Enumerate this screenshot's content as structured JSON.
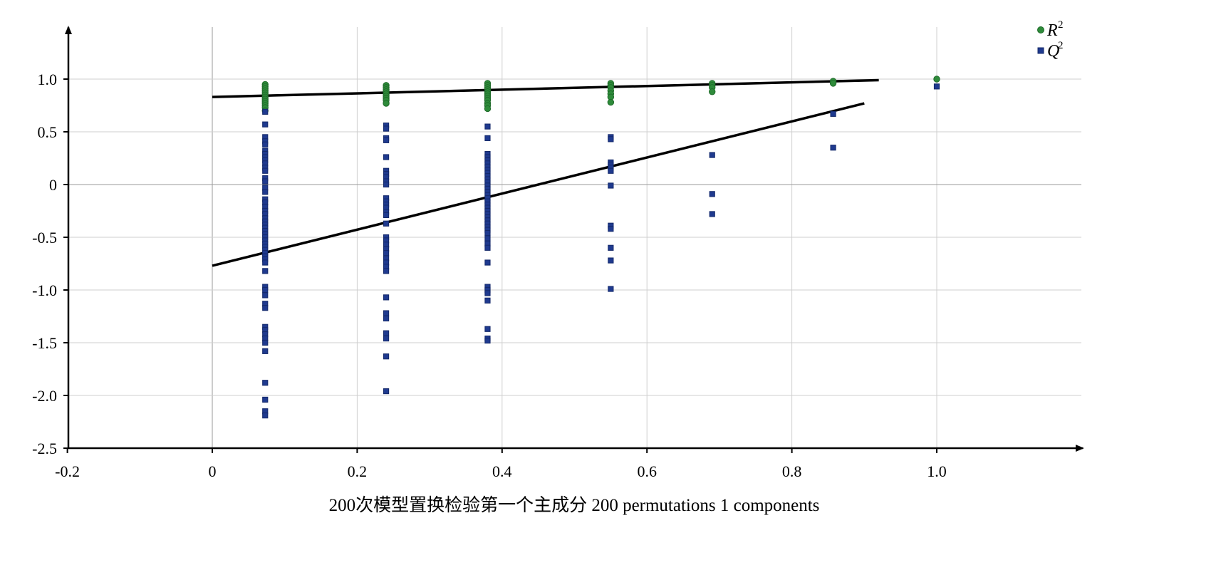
{
  "chart_data": {
    "type": "scatter",
    "xlabel": "200次模型置换检验第一个主成分 200 permutations 1 components",
    "xlim": [
      -0.2,
      1.2
    ],
    "ylim": [
      -2.5,
      1.5
    ],
    "x_ticks": [
      -0.2,
      0,
      0.2,
      0.4,
      0.6,
      0.8,
      1.0
    ],
    "x_tick_labels": [
      "-0.2",
      "0",
      "0.2",
      "0.4",
      "0.6",
      "0.8",
      "1.0"
    ],
    "y_ticks": [
      -2.5,
      -2.0,
      -1.5,
      -1.0,
      -0.5,
      0,
      0.5,
      1.0
    ],
    "y_tick_labels": [
      "-2.5",
      "-2.0",
      "-1.5",
      "-1.0",
      "-0.5",
      "0",
      "0.5",
      "1.0"
    ],
    "grid": true,
    "legend_position": "top-right",
    "legend": [
      {
        "label": "R",
        "sup": "2",
        "marker": "circle",
        "color": "#2e8b3a"
      },
      {
        "label": "Q",
        "sup": "2",
        "marker": "square",
        "color": "#1f3a8f"
      }
    ],
    "series": [
      {
        "name": "R2",
        "marker": "circle",
        "color": "#2e8b3a",
        "edge_color": "#1f6b2a",
        "points": [
          [
            0.073,
            0.95
          ],
          [
            0.073,
            0.93
          ],
          [
            0.073,
            0.91
          ],
          [
            0.073,
            0.89
          ],
          [
            0.073,
            0.87
          ],
          [
            0.073,
            0.85
          ],
          [
            0.073,
            0.83
          ],
          [
            0.073,
            0.81
          ],
          [
            0.073,
            0.79
          ],
          [
            0.073,
            0.77
          ],
          [
            0.073,
            0.75
          ],
          [
            0.073,
            0.73
          ],
          [
            0.073,
            0.7
          ],
          [
            0.24,
            0.94
          ],
          [
            0.24,
            0.92
          ],
          [
            0.24,
            0.9
          ],
          [
            0.24,
            0.88
          ],
          [
            0.24,
            0.86
          ],
          [
            0.24,
            0.84
          ],
          [
            0.24,
            0.82
          ],
          [
            0.24,
            0.8
          ],
          [
            0.24,
            0.77
          ],
          [
            0.38,
            0.96
          ],
          [
            0.38,
            0.94
          ],
          [
            0.38,
            0.92
          ],
          [
            0.38,
            0.9
          ],
          [
            0.38,
            0.88
          ],
          [
            0.38,
            0.86
          ],
          [
            0.38,
            0.84
          ],
          [
            0.38,
            0.82
          ],
          [
            0.38,
            0.8
          ],
          [
            0.38,
            0.77
          ],
          [
            0.38,
            0.75
          ],
          [
            0.38,
            0.72
          ],
          [
            0.55,
            0.96
          ],
          [
            0.55,
            0.94
          ],
          [
            0.55,
            0.92
          ],
          [
            0.55,
            0.89
          ],
          [
            0.55,
            0.86
          ],
          [
            0.55,
            0.83
          ],
          [
            0.55,
            0.78
          ],
          [
            0.69,
            0.96
          ],
          [
            0.69,
            0.94
          ],
          [
            0.69,
            0.92
          ],
          [
            0.69,
            0.88
          ],
          [
            0.857,
            0.98
          ],
          [
            0.857,
            0.96
          ],
          [
            1.0,
            1.0
          ]
        ]
      },
      {
        "name": "Q2",
        "marker": "square",
        "color": "#1f3a8f",
        "edge_color": "#14296a",
        "points": [
          [
            0.073,
            0.69
          ],
          [
            0.073,
            0.57
          ],
          [
            0.073,
            0.45
          ],
          [
            0.073,
            0.41
          ],
          [
            0.073,
            0.38
          ],
          [
            0.073,
            0.32
          ],
          [
            0.073,
            0.29
          ],
          [
            0.073,
            0.26
          ],
          [
            0.073,
            0.23
          ],
          [
            0.073,
            0.2
          ],
          [
            0.073,
            0.16
          ],
          [
            0.073,
            0.13
          ],
          [
            0.073,
            0.06
          ],
          [
            0.073,
            0.03
          ],
          [
            0.073,
            -0.03
          ],
          [
            0.073,
            -0.07
          ],
          [
            0.073,
            -0.14
          ],
          [
            0.073,
            -0.17
          ],
          [
            0.073,
            -0.21
          ],
          [
            0.073,
            -0.25
          ],
          [
            0.073,
            -0.28
          ],
          [
            0.073,
            -0.32
          ],
          [
            0.073,
            -0.35
          ],
          [
            0.073,
            -0.38
          ],
          [
            0.073,
            -0.41
          ],
          [
            0.073,
            -0.44
          ],
          [
            0.073,
            -0.47
          ],
          [
            0.073,
            -0.5
          ],
          [
            0.073,
            -0.53
          ],
          [
            0.073,
            -0.56
          ],
          [
            0.073,
            -0.59
          ],
          [
            0.073,
            -0.62
          ],
          [
            0.073,
            -0.65
          ],
          [
            0.073,
            -0.68
          ],
          [
            0.073,
            -0.71
          ],
          [
            0.073,
            -0.74
          ],
          [
            0.073,
            -0.82
          ],
          [
            0.073,
            -0.97
          ],
          [
            0.073,
            -1.0
          ],
          [
            0.073,
            -1.05
          ],
          [
            0.073,
            -1.13
          ],
          [
            0.073,
            -1.17
          ],
          [
            0.073,
            -1.35
          ],
          [
            0.073,
            -1.38
          ],
          [
            0.073,
            -1.42
          ],
          [
            0.073,
            -1.46
          ],
          [
            0.073,
            -1.5
          ],
          [
            0.073,
            -1.58
          ],
          [
            0.073,
            -1.88
          ],
          [
            0.073,
            -2.04
          ],
          [
            0.073,
            -2.15
          ],
          [
            0.073,
            -2.19
          ],
          [
            0.24,
            0.56
          ],
          [
            0.24,
            0.53
          ],
          [
            0.24,
            0.44
          ],
          [
            0.24,
            0.42
          ],
          [
            0.24,
            0.26
          ],
          [
            0.24,
            0.13
          ],
          [
            0.24,
            0.1
          ],
          [
            0.24,
            0.07
          ],
          [
            0.24,
            0.03
          ],
          [
            0.24,
            0.0
          ],
          [
            0.24,
            -0.13
          ],
          [
            0.24,
            -0.16
          ],
          [
            0.24,
            -0.19
          ],
          [
            0.24,
            -0.22
          ],
          [
            0.24,
            -0.26
          ],
          [
            0.24,
            -0.29
          ],
          [
            0.24,
            -0.37
          ],
          [
            0.24,
            -0.5
          ],
          [
            0.24,
            -0.53
          ],
          [
            0.24,
            -0.57
          ],
          [
            0.24,
            -0.61
          ],
          [
            0.24,
            -0.65
          ],
          [
            0.24,
            -0.7
          ],
          [
            0.24,
            -0.74
          ],
          [
            0.24,
            -0.78
          ],
          [
            0.24,
            -0.82
          ],
          [
            0.24,
            -1.07
          ],
          [
            0.24,
            -1.22
          ],
          [
            0.24,
            -1.27
          ],
          [
            0.24,
            -1.41
          ],
          [
            0.24,
            -1.46
          ],
          [
            0.24,
            -1.63
          ],
          [
            0.24,
            -1.96
          ],
          [
            0.38,
            0.55
          ],
          [
            0.38,
            0.44
          ],
          [
            0.38,
            0.29
          ],
          [
            0.38,
            0.26
          ],
          [
            0.38,
            0.23
          ],
          [
            0.38,
            0.2
          ],
          [
            0.38,
            0.17
          ],
          [
            0.38,
            0.14
          ],
          [
            0.38,
            0.11
          ],
          [
            0.38,
            0.08
          ],
          [
            0.38,
            0.05
          ],
          [
            0.38,
            0.02
          ],
          [
            0.38,
            -0.01
          ],
          [
            0.38,
            -0.04
          ],
          [
            0.38,
            -0.07
          ],
          [
            0.38,
            -0.1
          ],
          [
            0.38,
            -0.13
          ],
          [
            0.38,
            -0.16
          ],
          [
            0.38,
            -0.19
          ],
          [
            0.38,
            -0.22
          ],
          [
            0.38,
            -0.25
          ],
          [
            0.38,
            -0.28
          ],
          [
            0.38,
            -0.31
          ],
          [
            0.38,
            -0.34
          ],
          [
            0.38,
            -0.37
          ],
          [
            0.38,
            -0.4
          ],
          [
            0.38,
            -0.43
          ],
          [
            0.38,
            -0.46
          ],
          [
            0.38,
            -0.51
          ],
          [
            0.38,
            -0.56
          ],
          [
            0.38,
            -0.6
          ],
          [
            0.38,
            -0.74
          ],
          [
            0.38,
            -0.97
          ],
          [
            0.38,
            -1.0
          ],
          [
            0.38,
            -1.03
          ],
          [
            0.38,
            -1.1
          ],
          [
            0.38,
            -1.37
          ],
          [
            0.38,
            -1.46
          ],
          [
            0.38,
            -1.48
          ],
          [
            0.55,
            0.45
          ],
          [
            0.55,
            0.43
          ],
          [
            0.55,
            0.21
          ],
          [
            0.55,
            0.19
          ],
          [
            0.55,
            0.16
          ],
          [
            0.55,
            0.13
          ],
          [
            0.55,
            -0.01
          ],
          [
            0.55,
            -0.39
          ],
          [
            0.55,
            -0.42
          ],
          [
            0.55,
            -0.6
          ],
          [
            0.55,
            -0.72
          ],
          [
            0.55,
            -0.99
          ],
          [
            0.69,
            0.28
          ],
          [
            0.69,
            -0.09
          ],
          [
            0.69,
            -0.28
          ],
          [
            0.857,
            0.67
          ],
          [
            0.857,
            0.35
          ],
          [
            1.0,
            0.93
          ]
        ]
      }
    ],
    "regression_lines": [
      {
        "series": "R2",
        "x": [
          0,
          0.92
        ],
        "y": [
          0.83,
          0.99
        ],
        "color": "#000000"
      },
      {
        "series": "Q2",
        "x": [
          0,
          0.9
        ],
        "y": [
          -0.77,
          0.77
        ],
        "color": "#000000"
      }
    ]
  }
}
